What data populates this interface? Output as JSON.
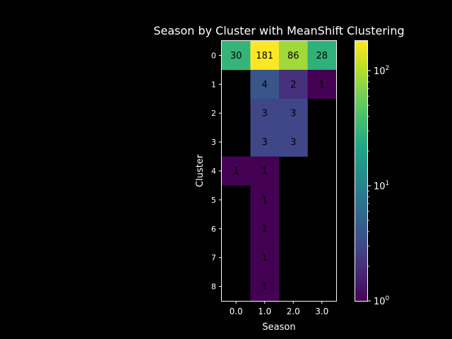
{
  "chart_data": {
    "type": "heatmap",
    "title": "Season by Cluster with MeanShift Clustering",
    "xlabel": "Season",
    "ylabel": "Cluster",
    "x_categories": [
      "0.0",
      "1.0",
      "2.0",
      "3.0"
    ],
    "y_categories": [
      "0",
      "1",
      "2",
      "3",
      "4",
      "5",
      "6",
      "7",
      "8"
    ],
    "values": [
      [
        30,
        181,
        86,
        28
      ],
      [
        null,
        4,
        2,
        1
      ],
      [
        null,
        3,
        3,
        null
      ],
      [
        null,
        3,
        3,
        null
      ],
      [
        1,
        1,
        null,
        null
      ],
      [
        null,
        1,
        null,
        null
      ],
      [
        null,
        1,
        null,
        null
      ],
      [
        null,
        1,
        null,
        null
      ],
      [
        null,
        1,
        null,
        null
      ]
    ],
    "colorscale": "viridis",
    "color_scale_type": "log",
    "clim": [
      1,
      181
    ],
    "colorbar_ticks": [
      {
        "value": 1,
        "base": "10",
        "exp": "0"
      },
      {
        "value": 10,
        "base": "10",
        "exp": "1"
      },
      {
        "value": 100,
        "base": "10",
        "exp": "2"
      }
    ],
    "background": "#000000",
    "foreground": "#ffffff",
    "annotation_color": "#000000",
    "grid": false,
    "legend": "colorbar-right"
  }
}
